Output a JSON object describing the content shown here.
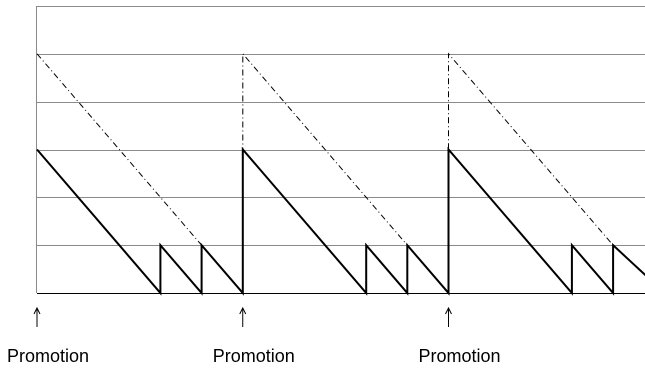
{
  "chart_data": {
    "type": "line",
    "title": "",
    "xlabel": "",
    "ylabel": "",
    "grid": true,
    "xlim": [
      0,
      15
    ],
    "ylim": [
      0,
      6
    ],
    "y_gridlines": [
      1,
      2,
      3,
      4,
      5,
      6
    ],
    "annotations": [
      {
        "x": 0,
        "label": "Promotion"
      },
      {
        "x": 5,
        "label": "Promotion"
      },
      {
        "x": 10,
        "label": "Promotion"
      }
    ],
    "series": [
      {
        "style": "solid",
        "x": [
          0,
          3,
          3,
          4,
          4,
          5,
          5,
          8,
          8,
          9,
          9,
          10,
          10,
          13,
          13,
          14,
          14,
          15
        ],
        "y": [
          3,
          0,
          1,
          0,
          1,
          0,
          3,
          0,
          1,
          0,
          1,
          0,
          3,
          0,
          1,
          0,
          1,
          0.2
        ]
      },
      {
        "style": "dashed",
        "x": [
          0,
          4,
          5,
          5,
          9,
          10,
          10,
          14,
          15
        ],
        "y": [
          5,
          1,
          0,
          5,
          1,
          0,
          5,
          1,
          0.2
        ]
      }
    ]
  }
}
